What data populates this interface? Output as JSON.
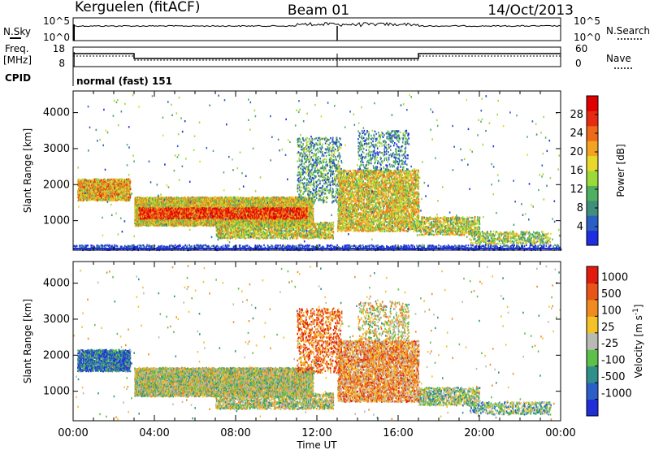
{
  "header": {
    "station": "Kerguelen (fitACF)",
    "beam": "Beam 01",
    "date": "14/Oct/2013"
  },
  "panels": {
    "nsky": {
      "label": "N.Sky",
      "left_ticks": [
        "10^5",
        "10^0"
      ],
      "right_ticks": [
        "10^5",
        "10^0"
      ],
      "right_label": "N.Search"
    },
    "freq": {
      "label_line1": "Freq.",
      "label_line2": "[MHz]",
      "left_ticks": [
        "18",
        "8"
      ],
      "right_ticks": [
        "60",
        "0"
      ],
      "right_label": "Nave"
    },
    "cpid": {
      "label": "CPID",
      "value": "normal (fast) 151"
    }
  },
  "chart_data": [
    {
      "type": "heatmap",
      "name": "power",
      "xlabel": "Time UT",
      "ylabel": "Slant Range [km]",
      "xlim": [
        0,
        24
      ],
      "ylim": [
        180,
        4600
      ],
      "x_ticks": [
        "00:00",
        "04:00",
        "08:00",
        "12:00",
        "16:00",
        "20:00",
        "00:00"
      ],
      "y_ticks": [
        1000,
        2000,
        3000,
        4000
      ],
      "colorbar": {
        "label": "Power [dB]",
        "min": 0,
        "max": 32,
        "tick_values": [
          4,
          8,
          12,
          16,
          20,
          24,
          28
        ],
        "colors": [
          "#1e2ee0",
          "#2a5fc4",
          "#3f8f7a",
          "#4fb060",
          "#9ed93a",
          "#e8d829",
          "#f2a320",
          "#ee6a18",
          "#e62b12",
          "#e00000"
        ]
      },
      "scatter_bands": [
        {
          "t0": 0.2,
          "t1": 2.8,
          "r0": 1550,
          "r1": 2150,
          "level": 0.62,
          "density": 0.9
        },
        {
          "t0": 3.0,
          "t1": 11.8,
          "r0": 850,
          "r1": 1650,
          "level": 0.55,
          "density": 0.95
        },
        {
          "t0": 3.2,
          "t1": 11.5,
          "r0": 1050,
          "r1": 1350,
          "level": 0.85,
          "density": 0.9
        },
        {
          "t0": 7.0,
          "t1": 12.8,
          "r0": 500,
          "r1": 950,
          "level": 0.5,
          "density": 0.6
        },
        {
          "t0": 11.0,
          "t1": 13.2,
          "r0": 1500,
          "r1": 3300,
          "level": 0.3,
          "density": 0.25
        },
        {
          "t0": 13.0,
          "t1": 17.0,
          "r0": 700,
          "r1": 2400,
          "level": 0.55,
          "density": 0.55
        },
        {
          "t0": 14.0,
          "t1": 16.5,
          "r0": 2400,
          "r1": 3500,
          "level": 0.25,
          "density": 0.2
        },
        {
          "t0": 17.0,
          "t1": 20.0,
          "r0": 600,
          "r1": 1100,
          "level": 0.5,
          "density": 0.5
        },
        {
          "t0": 19.5,
          "t1": 23.5,
          "r0": 350,
          "r1": 700,
          "level": 0.45,
          "density": 0.35
        },
        {
          "t0": 0.0,
          "t1": 24.0,
          "r0": 180,
          "r1": 320,
          "level": 0.05,
          "density": 0.4
        },
        {
          "t0": 0.0,
          "t1": 24.0,
          "r0": 200,
          "r1": 4500,
          "level": 0.3,
          "density": 0.004
        }
      ]
    },
    {
      "type": "heatmap",
      "name": "velocity",
      "xlabel": "Time UT",
      "ylabel": "Slant Range [km]",
      "xlim": [
        0,
        24
      ],
      "ylim": [
        180,
        4600
      ],
      "x_ticks": [
        "00:00",
        "04:00",
        "08:00",
        "12:00",
        "16:00",
        "20:00",
        "00:00"
      ],
      "y_ticks": [
        1000,
        2000,
        3000,
        4000
      ],
      "colorbar": {
        "label": "Velocity [m s",
        "label_sup": "-1",
        "label_end": "]",
        "tick_labels": [
          "1000",
          "500",
          "100",
          "25",
          "-25",
          "-100",
          "-500",
          "-1000"
        ],
        "colors": [
          "#1f2ed6",
          "#2c5ec8",
          "#2f8f8a",
          "#5cc04a",
          "#b9bab4",
          "#f2c228",
          "#f08c1f",
          "#e85516",
          "#e21b10"
        ]
      },
      "scatter_bands": [
        {
          "t0": 0.2,
          "t1": 2.8,
          "r0": 1550,
          "r1": 2150,
          "level": 0.2,
          "density": 0.85
        },
        {
          "t0": 3.0,
          "t1": 11.8,
          "r0": 850,
          "r1": 1650,
          "level": 0.5,
          "density": 0.9
        },
        {
          "t0": 7.0,
          "t1": 12.8,
          "r0": 500,
          "r1": 950,
          "level": 0.5,
          "density": 0.55
        },
        {
          "t0": 11.0,
          "t1": 13.2,
          "r0": 1500,
          "r1": 3300,
          "level": 0.8,
          "density": 0.25
        },
        {
          "t0": 13.0,
          "t1": 17.0,
          "r0": 700,
          "r1": 2400,
          "level": 0.7,
          "density": 0.55
        },
        {
          "t0": 14.0,
          "t1": 16.5,
          "r0": 2400,
          "r1": 3500,
          "level": 0.55,
          "density": 0.2
        },
        {
          "t0": 17.0,
          "t1": 20.0,
          "r0": 600,
          "r1": 1100,
          "level": 0.45,
          "density": 0.5
        },
        {
          "t0": 19.5,
          "t1": 23.5,
          "r0": 350,
          "r1": 700,
          "level": 0.4,
          "density": 0.35
        },
        {
          "t0": 0.0,
          "t1": 24.0,
          "r0": 200,
          "r1": 4500,
          "level": 0.5,
          "density": 0.004
        }
      ]
    }
  ]
}
